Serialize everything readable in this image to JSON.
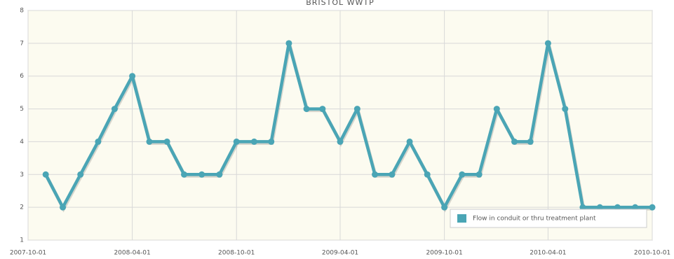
{
  "chart_data": {
    "type": "line",
    "title": "BRISTOL WWTP",
    "x": [
      "2007-11-01",
      "2007-12-01",
      "2008-01-01",
      "2008-02-01",
      "2008-03-01",
      "2008-04-01",
      "2008-05-01",
      "2008-06-01",
      "2008-07-01",
      "2008-08-01",
      "2008-09-01",
      "2008-10-01",
      "2008-11-01",
      "2008-12-01",
      "2009-01-01",
      "2009-02-01",
      "2009-03-01",
      "2009-04-01",
      "2009-05-01",
      "2009-06-01",
      "2009-07-01",
      "2009-08-01",
      "2009-09-01",
      "2009-10-01",
      "2009-11-01",
      "2009-12-01",
      "2010-01-01",
      "2010-02-01",
      "2010-03-01",
      "2010-04-01",
      "2010-05-01",
      "2010-06-01",
      "2010-07-01",
      "2010-08-01",
      "2010-09-01",
      "2010-10-01"
    ],
    "series": [
      {
        "name": "Flow in conduit or thru treatment plant",
        "color": "#4aa5b5",
        "values": [
          3,
          2,
          3,
          4,
          5,
          6,
          4,
          4,
          3,
          3,
          3,
          4,
          4,
          4,
          7,
          5,
          5,
          4,
          5,
          3,
          3,
          4,
          3,
          2,
          3,
          3,
          5,
          4,
          4,
          7,
          5,
          2,
          2,
          2,
          2,
          2
        ]
      }
    ],
    "xlim": [
      "2007-10-01",
      "2010-10-01"
    ],
    "xticks": [
      "2007-10-01",
      "2008-04-01",
      "2008-10-01",
      "2009-04-01",
      "2009-10-01",
      "2010-04-01",
      "2010-10-01"
    ],
    "ylim": [
      1,
      8
    ],
    "yticks": [
      1,
      2,
      3,
      4,
      5,
      6,
      7,
      8
    ],
    "grid": true,
    "legend": "bottom-right"
  }
}
